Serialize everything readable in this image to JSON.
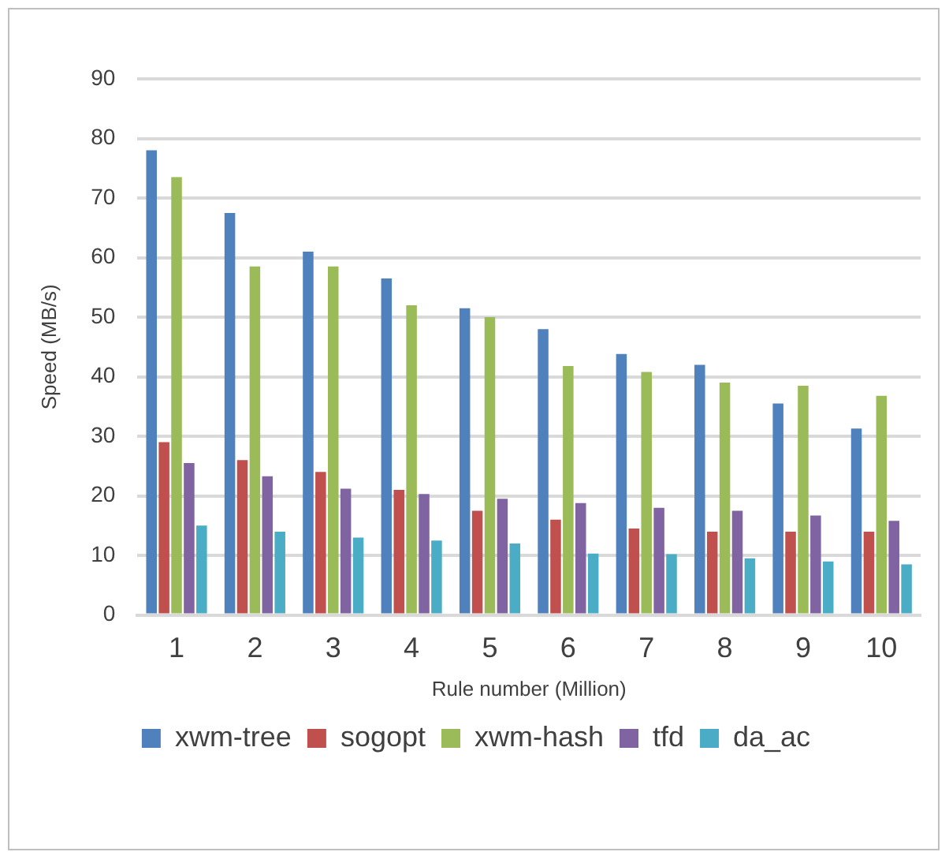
{
  "chart_data": {
    "type": "bar",
    "xlabel": "Rule number (Million)",
    "ylabel": "Speed (MB/s)",
    "categories": [
      "1",
      "2",
      "3",
      "4",
      "5",
      "6",
      "7",
      "8",
      "9",
      "10"
    ],
    "series": [
      {
        "name": "xwm-tree",
        "color": "#4f81bd",
        "values": [
          78,
          67.5,
          61,
          56.5,
          51.5,
          48,
          43.8,
          42,
          35.5,
          31.3
        ]
      },
      {
        "name": "sogopt",
        "color": "#c0504d",
        "values": [
          29,
          26,
          24,
          21,
          17.5,
          16,
          14.5,
          14,
          14,
          14
        ]
      },
      {
        "name": "xwm-hash",
        "color": "#9bbb59",
        "values": [
          73.5,
          58.5,
          58.5,
          52,
          50,
          41.8,
          40.8,
          39,
          38.5,
          36.8
        ]
      },
      {
        "name": "tfd",
        "color": "#8064a2",
        "values": [
          25.5,
          23.3,
          21.2,
          20.3,
          19.5,
          18.8,
          18,
          17.5,
          16.7,
          15.8
        ]
      },
      {
        "name": "da_ac",
        "color": "#4bacc6",
        "values": [
          15,
          14,
          13,
          12.5,
          12,
          10.3,
          10.2,
          9.5,
          9,
          8.5
        ]
      }
    ],
    "ylim": [
      0,
      90
    ],
    "yticks": [
      0,
      10,
      20,
      30,
      40,
      50,
      60,
      70,
      80,
      90
    ],
    "grid": "y",
    "legend": "bottom"
  }
}
